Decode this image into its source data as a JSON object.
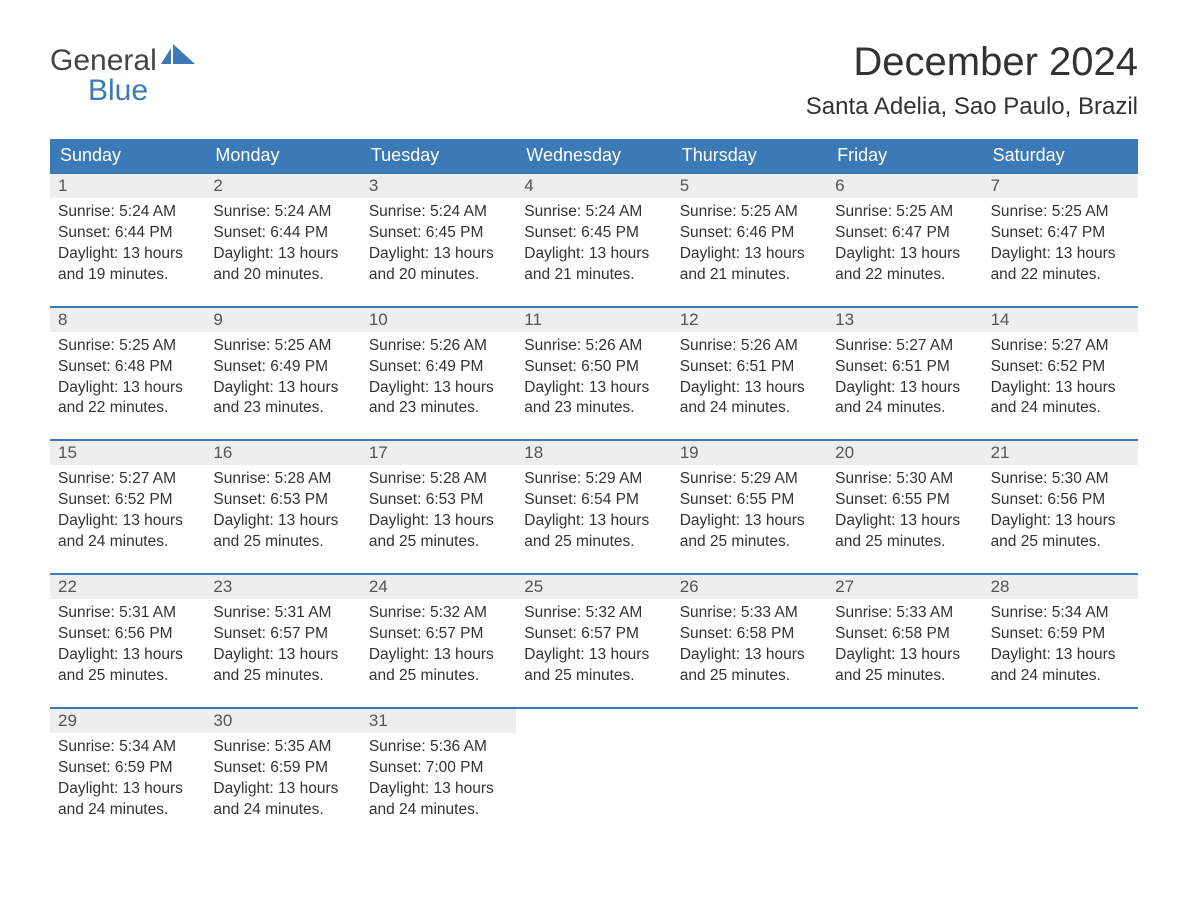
{
  "logo": {
    "text1": "General",
    "text2": "Blue",
    "flag_color": "#3b79b7"
  },
  "header": {
    "month_title": "December 2024",
    "location": "Santa Adelia, Sao Paulo, Brazil"
  },
  "colors": {
    "header_bg": "#3b79b7",
    "header_fg": "#ffffff",
    "row_top_border": "#3b79b7",
    "daynum_bg": "#eeeeee",
    "text": "#333333",
    "background": "#ffffff"
  },
  "layout": {
    "columns": 7,
    "rows": 5
  },
  "day_labels": [
    "Sunday",
    "Monday",
    "Tuesday",
    "Wednesday",
    "Thursday",
    "Friday",
    "Saturday"
  ],
  "days": [
    {
      "d": 1,
      "sunrise": "5:24 AM",
      "sunset": "6:44 PM",
      "daylight": "13 hours and 19 minutes."
    },
    {
      "d": 2,
      "sunrise": "5:24 AM",
      "sunset": "6:44 PM",
      "daylight": "13 hours and 20 minutes."
    },
    {
      "d": 3,
      "sunrise": "5:24 AM",
      "sunset": "6:45 PM",
      "daylight": "13 hours and 20 minutes."
    },
    {
      "d": 4,
      "sunrise": "5:24 AM",
      "sunset": "6:45 PM",
      "daylight": "13 hours and 21 minutes."
    },
    {
      "d": 5,
      "sunrise": "5:25 AM",
      "sunset": "6:46 PM",
      "daylight": "13 hours and 21 minutes."
    },
    {
      "d": 6,
      "sunrise": "5:25 AM",
      "sunset": "6:47 PM",
      "daylight": "13 hours and 22 minutes."
    },
    {
      "d": 7,
      "sunrise": "5:25 AM",
      "sunset": "6:47 PM",
      "daylight": "13 hours and 22 minutes."
    },
    {
      "d": 8,
      "sunrise": "5:25 AM",
      "sunset": "6:48 PM",
      "daylight": "13 hours and 22 minutes."
    },
    {
      "d": 9,
      "sunrise": "5:25 AM",
      "sunset": "6:49 PM",
      "daylight": "13 hours and 23 minutes."
    },
    {
      "d": 10,
      "sunrise": "5:26 AM",
      "sunset": "6:49 PM",
      "daylight": "13 hours and 23 minutes."
    },
    {
      "d": 11,
      "sunrise": "5:26 AM",
      "sunset": "6:50 PM",
      "daylight": "13 hours and 23 minutes."
    },
    {
      "d": 12,
      "sunrise": "5:26 AM",
      "sunset": "6:51 PM",
      "daylight": "13 hours and 24 minutes."
    },
    {
      "d": 13,
      "sunrise": "5:27 AM",
      "sunset": "6:51 PM",
      "daylight": "13 hours and 24 minutes."
    },
    {
      "d": 14,
      "sunrise": "5:27 AM",
      "sunset": "6:52 PM",
      "daylight": "13 hours and 24 minutes."
    },
    {
      "d": 15,
      "sunrise": "5:27 AM",
      "sunset": "6:52 PM",
      "daylight": "13 hours and 24 minutes."
    },
    {
      "d": 16,
      "sunrise": "5:28 AM",
      "sunset": "6:53 PM",
      "daylight": "13 hours and 25 minutes."
    },
    {
      "d": 17,
      "sunrise": "5:28 AM",
      "sunset": "6:53 PM",
      "daylight": "13 hours and 25 minutes."
    },
    {
      "d": 18,
      "sunrise": "5:29 AM",
      "sunset": "6:54 PM",
      "daylight": "13 hours and 25 minutes."
    },
    {
      "d": 19,
      "sunrise": "5:29 AM",
      "sunset": "6:55 PM",
      "daylight": "13 hours and 25 minutes."
    },
    {
      "d": 20,
      "sunrise": "5:30 AM",
      "sunset": "6:55 PM",
      "daylight": "13 hours and 25 minutes."
    },
    {
      "d": 21,
      "sunrise": "5:30 AM",
      "sunset": "6:56 PM",
      "daylight": "13 hours and 25 minutes."
    },
    {
      "d": 22,
      "sunrise": "5:31 AM",
      "sunset": "6:56 PM",
      "daylight": "13 hours and 25 minutes."
    },
    {
      "d": 23,
      "sunrise": "5:31 AM",
      "sunset": "6:57 PM",
      "daylight": "13 hours and 25 minutes."
    },
    {
      "d": 24,
      "sunrise": "5:32 AM",
      "sunset": "6:57 PM",
      "daylight": "13 hours and 25 minutes."
    },
    {
      "d": 25,
      "sunrise": "5:32 AM",
      "sunset": "6:57 PM",
      "daylight": "13 hours and 25 minutes."
    },
    {
      "d": 26,
      "sunrise": "5:33 AM",
      "sunset": "6:58 PM",
      "daylight": "13 hours and 25 minutes."
    },
    {
      "d": 27,
      "sunrise": "5:33 AM",
      "sunset": "6:58 PM",
      "daylight": "13 hours and 25 minutes."
    },
    {
      "d": 28,
      "sunrise": "5:34 AM",
      "sunset": "6:59 PM",
      "daylight": "13 hours and 24 minutes."
    },
    {
      "d": 29,
      "sunrise": "5:34 AM",
      "sunset": "6:59 PM",
      "daylight": "13 hours and 24 minutes."
    },
    {
      "d": 30,
      "sunrise": "5:35 AM",
      "sunset": "6:59 PM",
      "daylight": "13 hours and 24 minutes."
    },
    {
      "d": 31,
      "sunrise": "5:36 AM",
      "sunset": "7:00 PM",
      "daylight": "13 hours and 24 minutes."
    }
  ],
  "labels": {
    "sunrise_prefix": "Sunrise: ",
    "sunset_prefix": "Sunset: ",
    "daylight_prefix": "Daylight: "
  }
}
